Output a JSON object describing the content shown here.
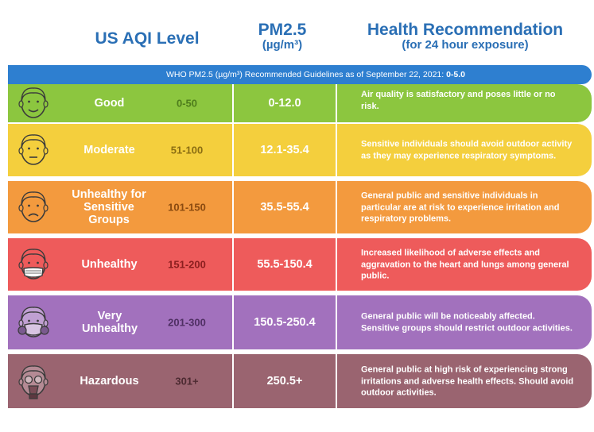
{
  "headers": {
    "aqi": "US AQI Level",
    "pm_title": "PM2.5",
    "pm_unit": "(µg/m³)",
    "rec_title": "Health Recommendation",
    "rec_sub": "(for 24 hour exposure)"
  },
  "banner": {
    "text": "WHO PM2.5 (µg/m³) Recommended Guidelines as of September 22, 2021: ",
    "value": "0-5.0"
  },
  "rows": [
    {
      "level": "Good",
      "range": "0-50",
      "pm": "0-12.0",
      "rec": "Air quality is satisfactory and poses little or no risk.",
      "color": "#8cc63f",
      "range_color": "#4e7d1c",
      "face": "smile"
    },
    {
      "level": "Moderate",
      "range": "51-100",
      "pm": "12.1-35.4",
      "rec": "Sensitive individuals should avoid outdoor activity as they may experience respiratory symptoms.",
      "color": "#f4cf3d",
      "range_color": "#8a6d12",
      "face": "neutral"
    },
    {
      "level": "Unhealthy for Sensitive Groups",
      "range": "101-150",
      "pm": "35.5-55.4",
      "rec": "General public and sensitive individuals in particular are at risk to experience irritation and respiratory problems.",
      "color": "#f39a3e",
      "range_color": "#8a4a10",
      "face": "sad"
    },
    {
      "level": "Unhealthy",
      "range": "151-200",
      "pm": "55.5-150.4",
      "rec": "Increased likelihood of adverse effects and aggravation to the heart and lungs among general public.",
      "color": "#ee5b5b",
      "range_color": "#8a1e1e",
      "face": "mask"
    },
    {
      "level": "Very Unhealthy",
      "range": "201-300",
      "pm": "150.5-250.4",
      "rec": "General public will be noticeably affected. Sensitive groups should restrict outdoor activities.",
      "color": "#a271bd",
      "range_color": "#4f2f63",
      "face": "respirator"
    },
    {
      "level": "Hazardous",
      "range": "301+",
      "pm": "250.5+",
      "rec": "General public at high risk of experiencing strong irritations and adverse health effects. Should avoid outdoor activities.",
      "color": "#9a6470",
      "range_color": "#4c2a31",
      "face": "gasmask"
    }
  ]
}
